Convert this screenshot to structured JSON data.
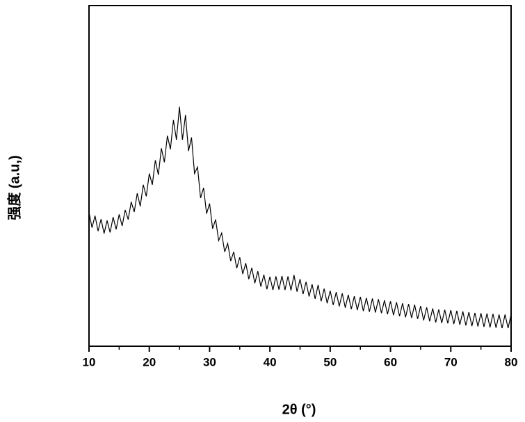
{
  "chart_data": {
    "type": "line",
    "x_label": "2θ (°)",
    "y_label": "强度 (a.u,)",
    "xlim": [
      10,
      80
    ],
    "ylim": [
      0,
      100
    ],
    "xticks": [
      10,
      20,
      30,
      40,
      50,
      60,
      70,
      80
    ],
    "xminorticks": [
      15,
      25,
      35,
      45,
      55,
      65,
      75
    ],
    "grid": false,
    "series": [
      {
        "color": "#000000",
        "x": [
          10,
          10.5,
          11,
          11.5,
          12,
          12.5,
          13,
          13.5,
          14,
          14.5,
          15,
          15.5,
          16,
          16.5,
          17,
          17.5,
          18,
          18.5,
          19,
          19.5,
          20,
          20.5,
          21,
          21.5,
          22,
          22.5,
          23,
          23.5,
          24,
          24.5,
          25,
          25.5,
          26,
          26.5,
          27,
          27.5,
          28,
          28.5,
          29,
          29.5,
          30,
          30.5,
          31,
          31.5,
          32,
          32.5,
          33,
          33.5,
          34,
          34.5,
          35,
          35.5,
          36,
          36.5,
          37,
          37.5,
          38,
          38.5,
          39,
          39.5,
          40,
          40.5,
          41,
          41.5,
          42,
          42.5,
          43,
          43.5,
          44,
          44.5,
          45,
          45.5,
          46,
          46.5,
          47,
          47.5,
          48,
          48.5,
          49,
          49.5,
          50,
          50.5,
          51,
          51.5,
          52,
          52.5,
          53,
          53.5,
          54,
          54.5,
          55,
          55.5,
          56,
          56.5,
          57,
          57.5,
          58,
          58.5,
          59,
          59.5,
          60,
          60.5,
          61,
          61.5,
          62,
          62.5,
          63,
          63.5,
          64,
          64.5,
          65,
          65.5,
          66,
          66.5,
          67,
          67.5,
          68,
          68.5,
          69,
          69.5,
          70,
          70.5,
          71,
          71.5,
          72,
          72.5,
          73,
          73.5,
          74,
          74.5,
          75,
          75.5,
          76,
          76.5,
          77,
          77.5,
          78,
          78.5,
          79,
          79.5,
          80
        ],
        "values": [
          39.3,
          34.8,
          38.3,
          33.8,
          37.3,
          33.1,
          36.9,
          33.4,
          37.9,
          34.3,
          38.7,
          35.3,
          40.0,
          37.2,
          42.4,
          39.4,
          44.9,
          41.1,
          47.4,
          44.0,
          50.7,
          47.4,
          54.6,
          50.3,
          58.1,
          54.0,
          61.8,
          57.8,
          66.4,
          60.6,
          70.3,
          60.6,
          67.9,
          57.3,
          61.3,
          50.7,
          52.6,
          43.5,
          46.5,
          38.9,
          41.9,
          34.5,
          37.2,
          31.0,
          33.2,
          27.7,
          30.2,
          25.0,
          27.7,
          22.9,
          26.1,
          21.2,
          24.4,
          19.7,
          23.0,
          18.5,
          22.0,
          17.5,
          21.0,
          16.7,
          20.4,
          16.5,
          20.5,
          16.6,
          20.6,
          16.5,
          20.5,
          16.4,
          20.9,
          16.0,
          19.7,
          15.3,
          18.9,
          14.6,
          18.2,
          13.9,
          18.0,
          13.2,
          16.9,
          12.6,
          16.3,
          12.1,
          15.9,
          11.7,
          15.5,
          11.3,
          15.1,
          10.9,
          14.7,
          10.6,
          14.5,
          10.3,
          14.2,
          10.1,
          14.0,
          9.9,
          13.8,
          9.7,
          13.5,
          9.4,
          13.2,
          9.1,
          12.9,
          8.8,
          12.6,
          8.5,
          12.4,
          8.3,
          12.2,
          8.0,
          11.8,
          7.6,
          11.4,
          7.3,
          11.1,
          7.0,
          10.8,
          6.8,
          10.7,
          6.7,
          10.6,
          6.5,
          10.4,
          6.3,
          10.2,
          6.1,
          10.0,
          5.9,
          9.8,
          5.8,
          9.7,
          5.7,
          9.6,
          5.5,
          9.5,
          5.4,
          9.3,
          5.3,
          9.3,
          5.3,
          9.3
        ]
      }
    ]
  }
}
